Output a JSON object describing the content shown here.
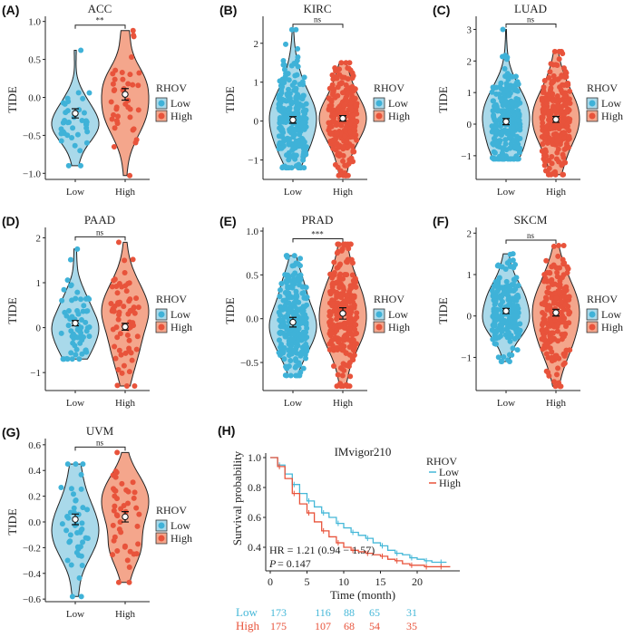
{
  "colors": {
    "low_fill": "#a9d9ea",
    "low_point": "#3fb2d8",
    "high_fill": "#f4a68c",
    "high_point": "#e8533b",
    "low_line": "#45b8d8",
    "high_line": "#e8533b"
  },
  "chart_data": [
    {
      "type": "violin",
      "panel": "(A)",
      "title": "ACC",
      "ylabel": "TIDE",
      "categories": [
        "Low",
        "High"
      ],
      "ylim": [
        -1.08,
        1.02
      ],
      "yticks": [
        -1.0,
        -0.5,
        0.0,
        0.5,
        1.0
      ],
      "ytick_labels": [
        "−1.0",
        "−0.5",
        "0.0",
        "0.5",
        "1.0"
      ],
      "significance": "**",
      "legend_title": "RHOV",
      "legend": [
        "Low",
        "High"
      ],
      "groups": [
        {
          "min": -0.9,
          "max": 0.62,
          "mean": -0.21
        },
        {
          "min": -1.03,
          "max": 0.88,
          "mean": 0.04
        }
      ]
    },
    {
      "type": "violin",
      "panel": "(B)",
      "title": "KIRC",
      "ylabel": "TIDE",
      "categories": [
        "Low",
        "High"
      ],
      "ylim": [
        -1.5,
        2.6
      ],
      "yticks": [
        -1,
        0,
        1,
        2
      ],
      "ytick_labels": [
        "−1",
        "0",
        "1",
        "2"
      ],
      "significance": "ns",
      "legend_title": "RHOV",
      "legend": [
        "Low",
        "High"
      ],
      "groups": [
        {
          "min": -1.2,
          "max": 2.35,
          "mean": 0.03
        },
        {
          "min": -1.4,
          "max": 1.5,
          "mean": 0.07
        }
      ]
    },
    {
      "type": "violin",
      "panel": "(C)",
      "title": "LUAD",
      "ylabel": "TIDE",
      "categories": [
        "Low",
        "High"
      ],
      "ylim": [
        -1.75,
        3.3
      ],
      "yticks": [
        -1,
        0,
        1,
        2,
        3
      ],
      "ytick_labels": [
        "−1",
        "0",
        "1",
        "2",
        "3"
      ],
      "significance": "ns",
      "legend_title": "RHOV",
      "legend": [
        "Low",
        "High"
      ],
      "groups": [
        {
          "min": -1.1,
          "max": 3.0,
          "mean": 0.08
        },
        {
          "min": -1.6,
          "max": 2.3,
          "mean": 0.15
        }
      ]
    },
    {
      "type": "violin",
      "panel": "(D)",
      "title": "PAAD",
      "ylabel": "TIDE",
      "categories": [
        "Low",
        "High"
      ],
      "ylim": [
        -1.4,
        2.15
      ],
      "yticks": [
        -1,
        0,
        1,
        2
      ],
      "ytick_labels": [
        "−1",
        "0",
        "1",
        "2"
      ],
      "significance": "ns",
      "legend_title": "RHOV",
      "legend": [
        "Low",
        "High"
      ],
      "groups": [
        {
          "min": -0.7,
          "max": 1.75,
          "mean": 0.1
        },
        {
          "min": -1.3,
          "max": 1.9,
          "mean": 0.02
        }
      ]
    },
    {
      "type": "violin",
      "panel": "(E)",
      "title": "PRAD",
      "ylabel": "TIDE",
      "categories": [
        "Low",
        "High"
      ],
      "ylim": [
        -0.82,
        1.0
      ],
      "yticks": [
        -0.5,
        0.0,
        0.5,
        1.0
      ],
      "ytick_labels": [
        "−0.5",
        "0.0",
        "0.5",
        "1.0"
      ],
      "significance": "***",
      "legend_title": "RHOV",
      "legend": [
        "Low",
        "High"
      ],
      "groups": [
        {
          "min": -0.65,
          "max": 0.72,
          "mean": -0.04
        },
        {
          "min": -0.77,
          "max": 0.85,
          "mean": 0.06
        }
      ]
    },
    {
      "type": "violin",
      "panel": "(F)",
      "title": "SKCM",
      "ylabel": "TIDE",
      "categories": [
        "Low",
        "High"
      ],
      "ylim": [
        -1.8,
        2.05
      ],
      "yticks": [
        -1,
        0,
        1,
        2
      ],
      "ytick_labels": [
        "−1",
        "0",
        "1",
        "2"
      ],
      "significance": "ns",
      "legend_title": "RHOV",
      "legend": [
        "Low",
        "High"
      ],
      "groups": [
        {
          "min": -1.1,
          "max": 1.5,
          "mean": 0.12
        },
        {
          "min": -1.7,
          "max": 1.7,
          "mean": 0.08
        }
      ]
    },
    {
      "type": "violin",
      "panel": "(G)",
      "title": "UVM",
      "ylabel": "TIDE",
      "categories": [
        "Low",
        "High"
      ],
      "ylim": [
        -0.62,
        0.62
      ],
      "yticks": [
        -0.6,
        -0.4,
        -0.2,
        0.0,
        0.2,
        0.4,
        0.6
      ],
      "ytick_labels": [
        "−0.6",
        "−0.4",
        "−0.2",
        "0.0",
        "0.2",
        "0.4",
        "0.6"
      ],
      "significance": "ns",
      "legend_title": "RHOV",
      "legend": [
        "Low",
        "High"
      ],
      "groups": [
        {
          "min": -0.58,
          "max": 0.45,
          "mean": 0.02
        },
        {
          "min": -0.47,
          "max": 0.54,
          "mean": 0.04
        }
      ]
    },
    {
      "type": "line",
      "panel": "(H)",
      "title": "IMvigor210",
      "xlabel": "Time (month)",
      "ylabel": "Survival probability",
      "xlim": [
        0,
        25
      ],
      "ylim": [
        0.25,
        1.0
      ],
      "xticks": [
        0,
        5,
        10,
        15,
        20
      ],
      "yticks": [
        0.4,
        0.6,
        0.8,
        1.0
      ],
      "ytick_labels": [
        "0.4",
        "0.6",
        "0.8",
        "1.0"
      ],
      "legend_title": "RHOV",
      "hr_text": "HR = 1.21 (0.94 − 1.57)",
      "p_label": "P",
      "p_text": " = 0.147",
      "series": [
        {
          "name": "Low",
          "x": [
            0,
            1,
            2,
            3,
            4,
            5,
            6,
            7,
            8,
            9,
            10,
            11,
            12,
            13,
            14,
            15,
            16,
            17,
            18,
            19,
            20,
            21,
            22,
            23,
            24
          ],
          "y": [
            1,
            0.95,
            0.89,
            0.82,
            0.76,
            0.71,
            0.67,
            0.63,
            0.6,
            0.56,
            0.53,
            0.5,
            0.48,
            0.46,
            0.43,
            0.41,
            0.38,
            0.36,
            0.35,
            0.33,
            0.32,
            0.31,
            0.3,
            0.3,
            0.3
          ]
        },
        {
          "name": "High",
          "x": [
            0,
            1,
            2,
            3,
            4,
            5,
            6,
            7,
            8,
            9,
            10,
            11,
            12,
            13,
            14,
            15,
            16,
            17,
            18,
            19,
            20,
            21,
            22,
            23,
            24.5
          ],
          "y": [
            1,
            0.94,
            0.86,
            0.76,
            0.69,
            0.63,
            0.57,
            0.51,
            0.47,
            0.43,
            0.4,
            0.38,
            0.37,
            0.36,
            0.35,
            0.34,
            0.32,
            0.31,
            0.29,
            0.28,
            0.28,
            0.27,
            0.27,
            0.27,
            0.27
          ]
        }
      ],
      "risk_table": {
        "Low": [
          "173",
          "116",
          "88",
          "65",
          "31"
        ],
        "High": [
          "175",
          "107",
          "68",
          "54",
          "35"
        ]
      }
    }
  ]
}
